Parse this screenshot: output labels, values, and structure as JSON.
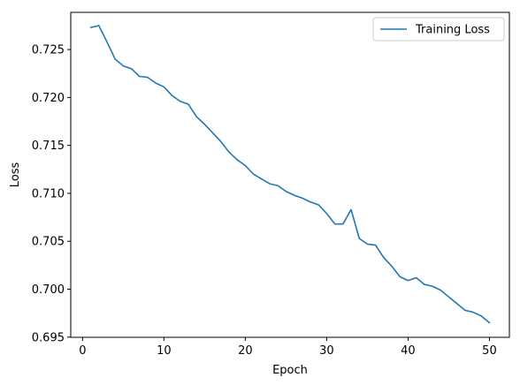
{
  "chart_data": {
    "type": "line",
    "title": "",
    "xlabel": "Epoch",
    "ylabel": "Loss",
    "xlim": [
      -1.45,
      52.45
    ],
    "ylim": [
      0.69498,
      0.72888
    ],
    "x_ticks": [
      0,
      10,
      20,
      30,
      40,
      50
    ],
    "y_ticks": [
      0.695,
      0.7,
      0.705,
      0.71,
      0.715,
      0.72,
      0.725
    ],
    "y_tick_labels": [
      "0.695",
      "0.700",
      "0.705",
      "0.710",
      "0.715",
      "0.720",
      "0.725"
    ],
    "grid": false,
    "legend_position": "top-right",
    "series": [
      {
        "name": "Training Loss",
        "color": "#1f77b4",
        "x": [
          1,
          2,
          3,
          4,
          5,
          6,
          7,
          8,
          9,
          10,
          11,
          12,
          13,
          14,
          15,
          16,
          17,
          18,
          19,
          20,
          21,
          22,
          23,
          24,
          25,
          26,
          27,
          28,
          29,
          30,
          31,
          32,
          33,
          34,
          35,
          36,
          37,
          38,
          39,
          40,
          41,
          42,
          43,
          44,
          45,
          46,
          47,
          48,
          49,
          50
        ],
        "values": [
          0.7273,
          0.7275,
          0.7258,
          0.724,
          0.7233,
          0.723,
          0.7222,
          0.7221,
          0.7215,
          0.7211,
          0.7202,
          0.7196,
          0.7193,
          0.718,
          0.7172,
          0.7163,
          0.7154,
          0.7143,
          0.7135,
          0.7129,
          0.712,
          0.7115,
          0.711,
          0.7108,
          0.7102,
          0.7098,
          0.7095,
          0.7091,
          0.7088,
          0.7079,
          0.7068,
          0.7068,
          0.7083,
          0.7053,
          0.7047,
          0.7046,
          0.7033,
          0.7024,
          0.7013,
          0.7009,
          0.7012,
          0.7005,
          0.7003,
          0.6999,
          0.6992,
          0.6985,
          0.6978,
          0.6976,
          0.6972,
          0.6965
        ]
      }
    ]
  }
}
